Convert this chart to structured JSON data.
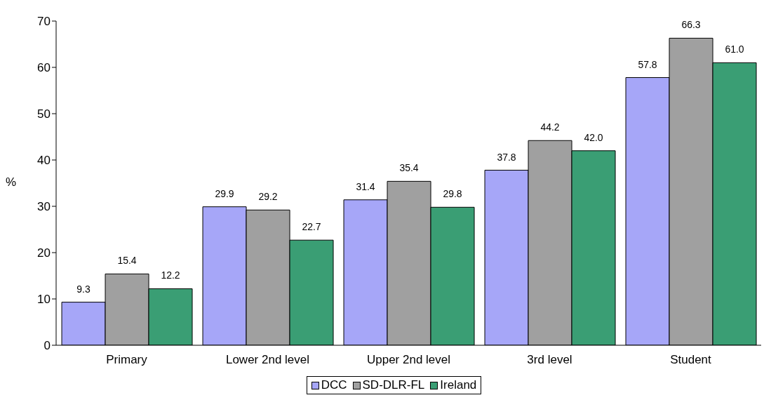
{
  "chart_data": {
    "type": "bar",
    "ylabel": "%",
    "categories": [
      "Primary",
      "Lower 2nd level",
      "Upper 2nd level",
      "3rd level",
      "Student"
    ],
    "series": [
      {
        "name": "DCC",
        "color": "#a6a6f8",
        "values": [
          9.3,
          29.9,
          31.4,
          37.8,
          57.8
        ],
        "value_labels": [
          "9.3",
          "29.9",
          "31.4",
          "37.8",
          "57.8"
        ]
      },
      {
        "name": "SD-DLR-FL",
        "color": "#a0a0a0",
        "values": [
          15.4,
          29.2,
          35.4,
          44.2,
          66.3
        ],
        "value_labels": [
          "15.4",
          "29.2",
          "35.4",
          "44.2",
          "66.3"
        ]
      },
      {
        "name": "Ireland",
        "color": "#3a9e74",
        "values": [
          12.2,
          22.7,
          29.8,
          42.0,
          61.0
        ],
        "value_labels": [
          "12.2",
          "22.7",
          "29.8",
          "42.0",
          "61.0"
        ]
      }
    ],
    "ylim": [
      0,
      70
    ],
    "yticks": [
      0,
      10,
      20,
      30,
      40,
      50,
      60,
      70
    ],
    "legend": "bottom"
  }
}
